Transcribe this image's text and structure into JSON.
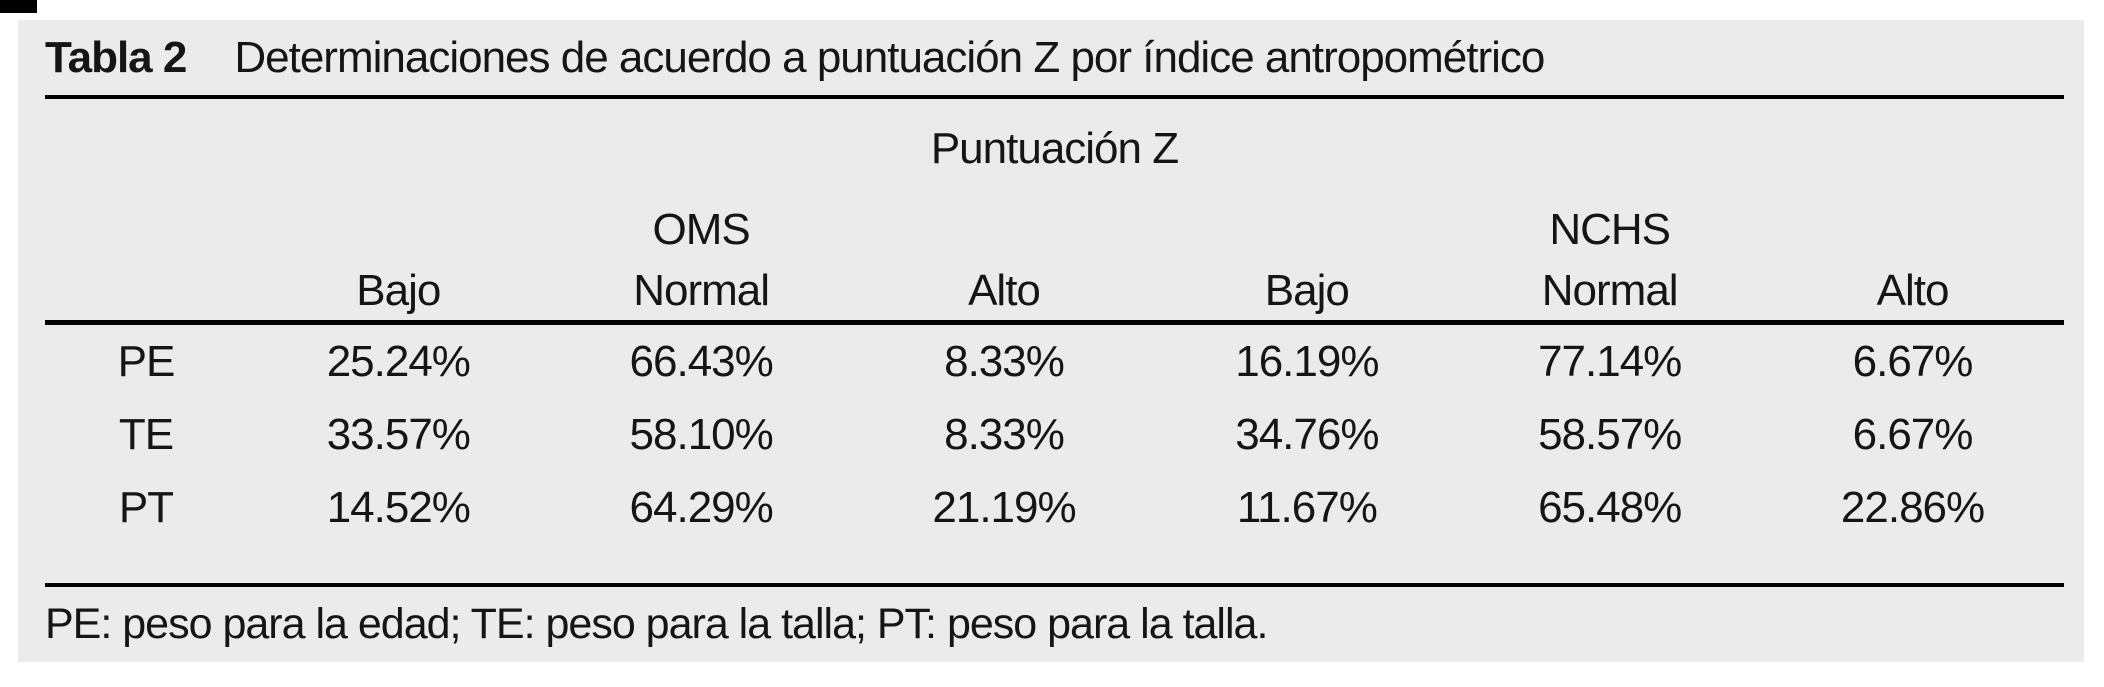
{
  "table": {
    "label": "Tabla 2",
    "title": "Determinaciones de acuerdo a puntuación Z por índice antropométrico",
    "spanner": "Puntuación Z",
    "groups": [
      {
        "label": "OMS"
      },
      {
        "label": "NCHS"
      }
    ],
    "columns": [
      "Bajo",
      "Normal",
      "Alto",
      "Bajo",
      "Normal",
      "Alto"
    ],
    "rows": [
      {
        "label": "PE",
        "values": [
          "25.24%",
          "66.43%",
          "8.33%",
          "16.19%",
          "77.14%",
          "6.67%"
        ]
      },
      {
        "label": "TE",
        "values": [
          "33.57%",
          "58.10%",
          "8.33%",
          "34.76%",
          "58.57%",
          "6.67%"
        ]
      },
      {
        "label": "PT",
        "values": [
          "14.52%",
          "64.29%",
          "21.19%",
          "11.67%",
          "65.48%",
          "22.86%"
        ]
      }
    ],
    "footnote": "PE: peso para la edad; TE: peso para la talla; PT: peso para la talla."
  },
  "colors": {
    "page_bg": "#ffffff",
    "panel_bg": "#ebebeb",
    "text": "#151515",
    "rule": "#000000"
  }
}
